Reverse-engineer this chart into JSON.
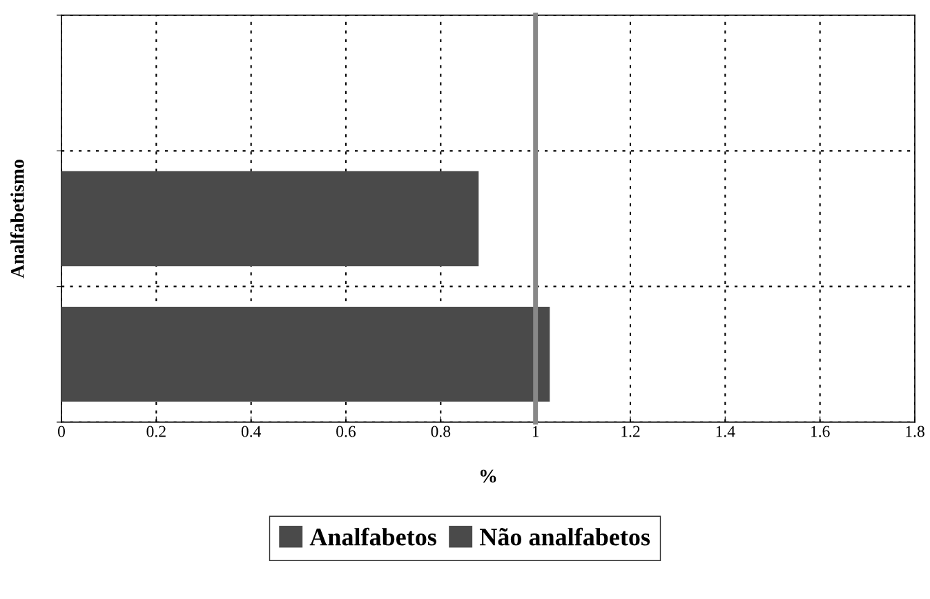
{
  "chart_data": {
    "type": "bar",
    "orientation": "horizontal",
    "xlabel": "%",
    "ylabel": "Analfabetismo",
    "categories": [
      null,
      null,
      null
    ],
    "series": [
      {
        "name": "Analfabetos",
        "color": "#4a4a4a",
        "values": [
          null,
          null,
          1.03
        ]
      },
      {
        "name": "Não analfabetos",
        "color": "#4a4a4a",
        "values": [
          null,
          0.88,
          null
        ]
      }
    ],
    "xlim": [
      0,
      1.8
    ],
    "xticks": [
      0,
      0.2,
      0.4,
      0.6,
      0.8,
      1,
      1.2,
      1.4,
      1.6,
      1.8
    ],
    "ref_lines": [
      {
        "axis": "x",
        "value": 1,
        "color": "#888888",
        "line_style": "solid"
      }
    ],
    "grid": true,
    "legend": "bottom",
    "tick_labels": "x"
  }
}
